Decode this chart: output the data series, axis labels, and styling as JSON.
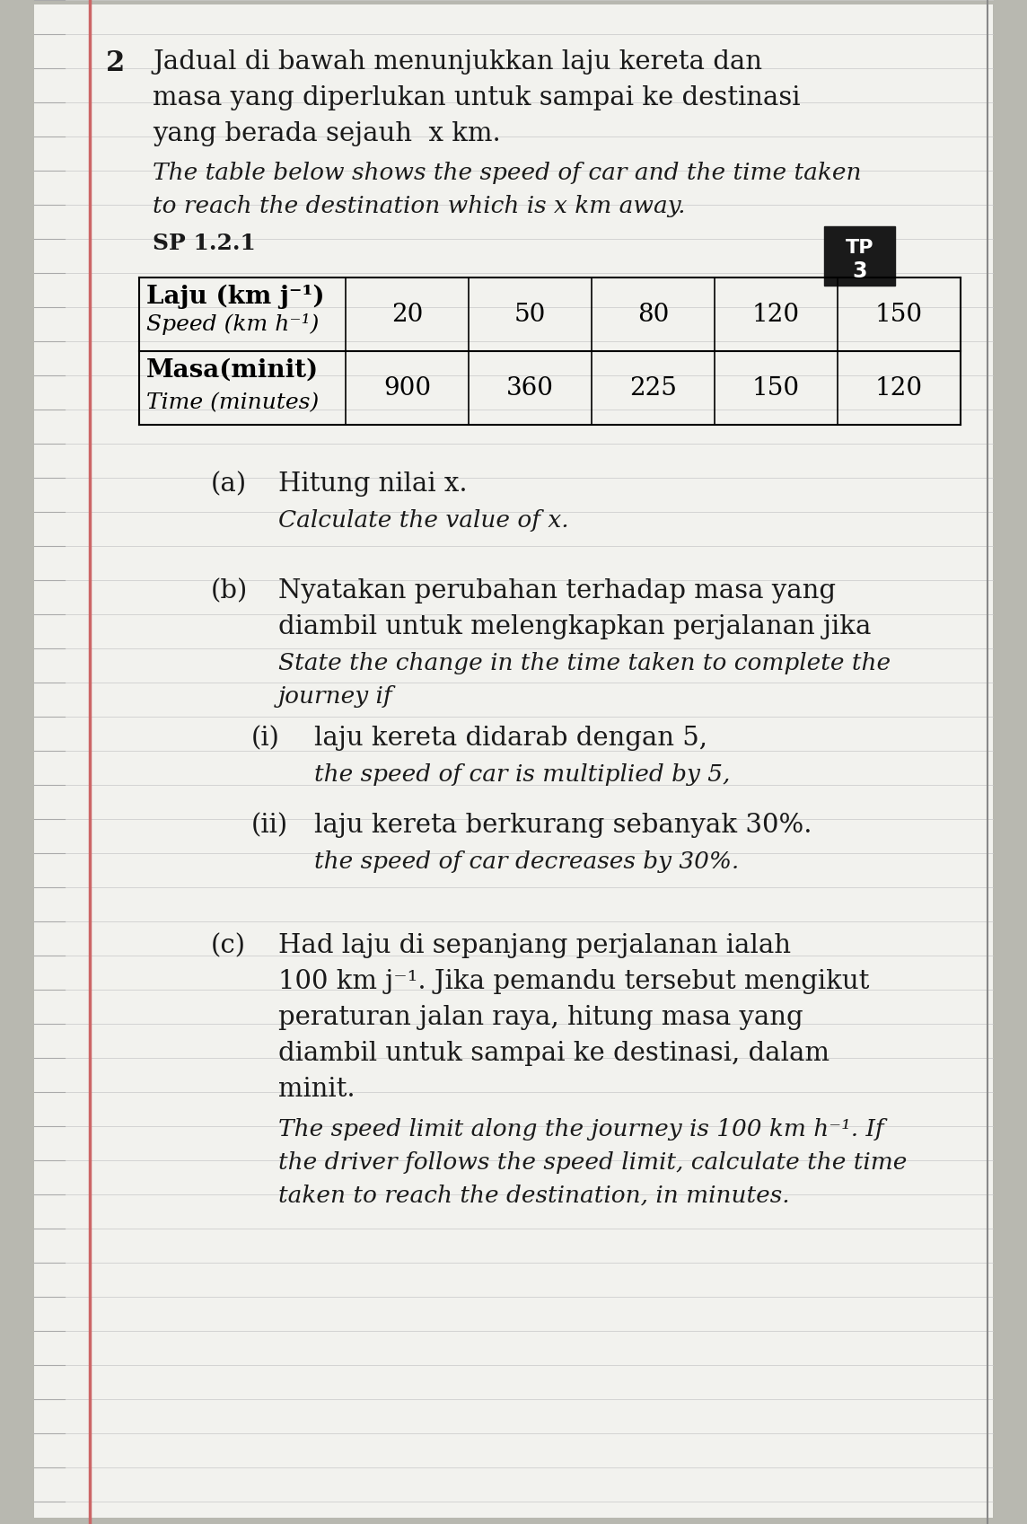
{
  "background_color": "#b8b8b0",
  "page_bg": "#e8e8e4",
  "question_number": "2",
  "intro_malay_1": "Jadual di bawah menunjukkan laju kereta dan",
  "intro_malay_2": "masa yang diperlukan untuk sampai ke destinasi",
  "intro_malay_3": "yang berada sejauh  x km.",
  "intro_eng_1": "The table below shows the speed of car and the time taken",
  "intro_eng_2": "to reach the destination which is x km away.",
  "sp_label": "SP 1.2.1",
  "tp_text_1": "TP",
  "tp_text_2": "3",
  "table_row1_malay": "Laju (km j⁻¹)",
  "table_row1_english": "Speed (km h⁻¹)",
  "table_row2_malay": "Masa(minit)",
  "table_row2_english": "Time (minutes)",
  "speed_values": [
    "20",
    "50",
    "80",
    "120",
    "150"
  ],
  "time_values": [
    "900",
    "360",
    "225",
    "150",
    "120"
  ],
  "pa_label": "(a)",
  "pa_malay": "Hitung nilai x.",
  "pa_english": "Calculate the value of x.",
  "pb_label": "(b)",
  "pb_malay_1": "Nyatakan perubahan terhadap masa yang",
  "pb_malay_2": "diambil untuk melengkapkan perjalanan jika",
  "pb_eng_1": "State the change in the time taken to complete the",
  "pb_eng_2": "journey if",
  "pbi_label": "(i)",
  "pbi_malay": "laju kereta didarab dengan 5,",
  "pbi_english": "the speed of car is multiplied by 5,",
  "pbii_label": "(ii)",
  "pbii_malay": "laju kereta berkurang sebanyak 30%.",
  "pbii_english": "the speed of car decreases by 30%.",
  "pc_label": "(c)",
  "pc_malay_1": "Had laju di sepanjang perjalanan ialah",
  "pc_malay_2": "100 km j⁻¹. Jika pemandu tersebut mengikut",
  "pc_malay_3": "peraturan jalan raya, hitung masa yang",
  "pc_malay_4": "diambil untuk sampai ke destinasi, dalam",
  "pc_malay_5": "minit.",
  "pc_eng_1": "The speed limit along the journey is 100 km h⁻¹. If",
  "pc_eng_2": "the driver follows the speed limit, calculate the time",
  "pc_eng_3": "taken to reach the destination, in minutes.",
  "margin_line_color": "#cc8888",
  "notebook_line_color": "#aaaaaa",
  "right_border_color": "#888888"
}
